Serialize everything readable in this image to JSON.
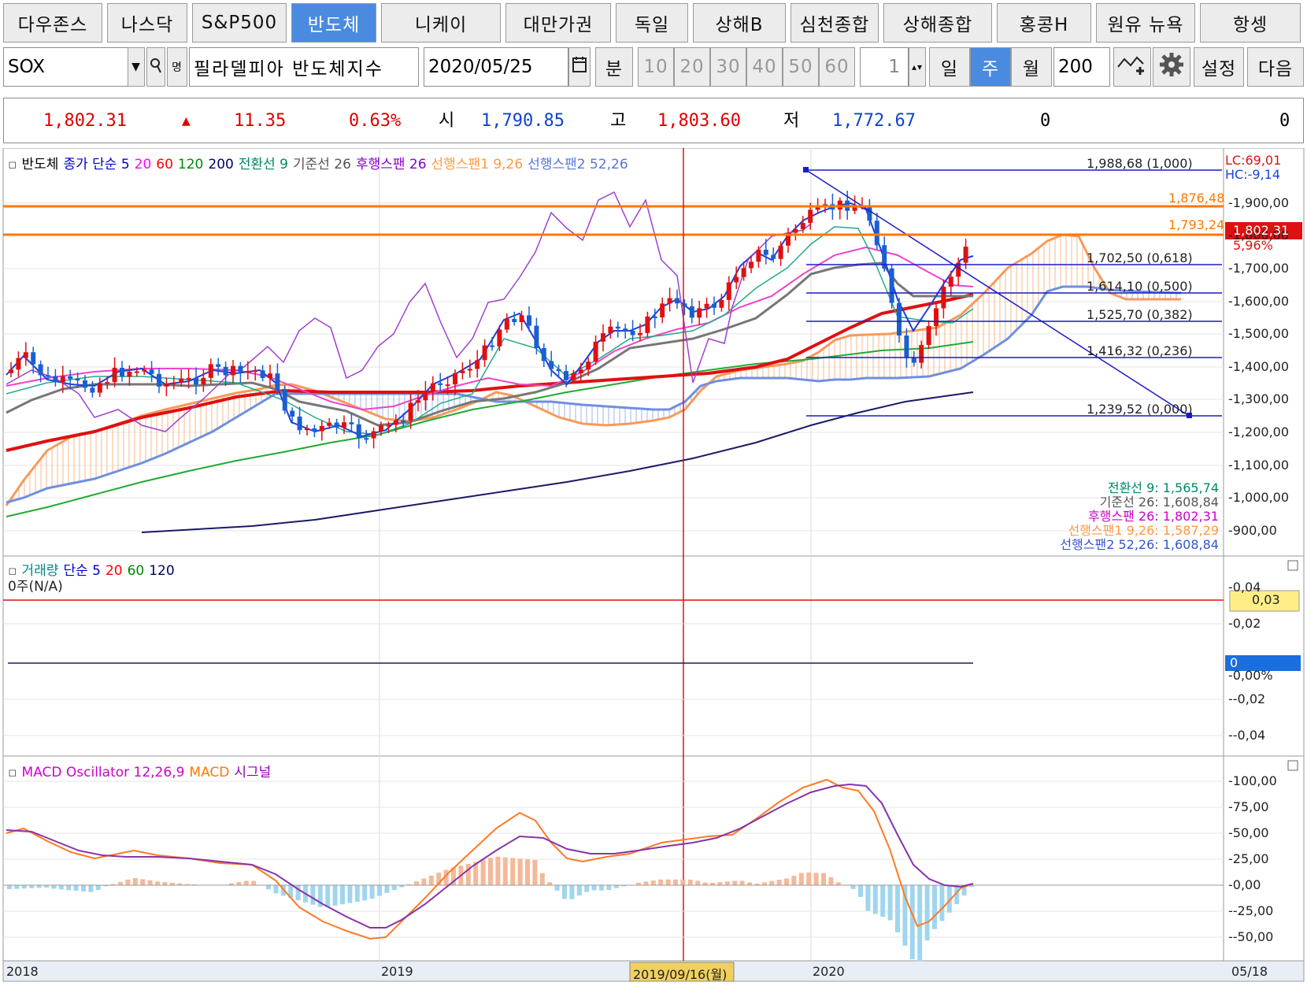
{
  "market_tabs": [
    "다우존스",
    "나스닥",
    "S&P500",
    "반도체",
    "니케이",
    "대만가권",
    "독일",
    "상해B",
    "심천종합",
    "상해종합",
    "홍콩H",
    "원유 뉴욕",
    "항셍"
  ],
  "active_tab": 3,
  "toolbar": {
    "symbol": "SOX",
    "dropdown_glyph": "▼",
    "search_glyph": "🔍",
    "name_glyph": "명",
    "name": "필라델피아 반도체지수",
    "date": "2020/05/25",
    "min_label": "분",
    "intervals": [
      "10",
      "20",
      "30",
      "40",
      "50",
      "60"
    ],
    "count": "1",
    "day_label": "일",
    "week_label": "주",
    "month_label": "월",
    "period": "200",
    "settings_label": "설정",
    "next_label": "다음"
  },
  "quote": {
    "price": "1,802.31",
    "arrow": "▲",
    "change": "11.35",
    "pct": "0.63%",
    "open_label": "시",
    "open": "1,790.85",
    "high_label": "고",
    "high": "1,803.60",
    "low_label": "저",
    "low": "1,772.67",
    "vol": "0",
    "amt": "0"
  },
  "price_panel": {
    "legend": [
      {
        "text": "반도체",
        "color": "#000000"
      },
      {
        "text": "종가 단순 5",
        "color": "#0000cc"
      },
      {
        "text": "20",
        "color": "#ff00ff"
      },
      {
        "text": "60",
        "color": "#ff0000"
      },
      {
        "text": "120",
        "color": "#008800"
      },
      {
        "text": "200",
        "color": "#000066"
      },
      {
        "text": "전환선 9",
        "color": "#008866"
      },
      {
        "text": "기준선 26",
        "color": "#555555"
      },
      {
        "text": "후행스팬 26",
        "color": "#8800cc"
      },
      {
        "text": "선행스팬1 9,26",
        "color": "#ff9944"
      },
      {
        "text": "선행스팬2 52,26",
        "color": "#5577dd"
      }
    ],
    "y_ticks": [
      "1,900,00",
      "1,800,00",
      "1,700,00",
      "1,600,00",
      "1,500,00",
      "1,400,00",
      "1,300,00",
      "1,200,00",
      "1,100,00",
      "1,000,00",
      "900,00"
    ],
    "fib_labels": [
      "1,988,68 (1,000)",
      "1,702,50 (0,618)",
      "1,614,10 (0,500)",
      "1,525,70 (0,382)",
      "1,416,32 (0,236)",
      "1,239,52 (0,000)"
    ],
    "hline_labels": [
      "1,876,48",
      "1,793,24"
    ],
    "lc": "LC:69,01",
    "hc": "HC:-9,14",
    "last_price": "1,802,31",
    "last_pct": "5,96%",
    "ichimoku_values": [
      {
        "text": "전환선 9: 1,565,74",
        "color": "#008866"
      },
      {
        "text": "기준선 26: 1,608,84",
        "color": "#555555"
      },
      {
        "text": "후행스팬 26: 1,802,31",
        "color": "#cc00cc"
      },
      {
        "text": "선행스팬1 9,26: 1,587,29",
        "color": "#ff9944"
      },
      {
        "text": "선행스팬2 52,26: 1,608,84",
        "color": "#3355cc"
      }
    ]
  },
  "volume_panel": {
    "legend": [
      {
        "text": "거래량",
        "color": "#008888"
      },
      {
        "text": "단순 5",
        "color": "#0000cc"
      },
      {
        "text": "20",
        "color": "#ff0000"
      },
      {
        "text": "60",
        "color": "#008800"
      },
      {
        "text": "120",
        "color": "#000066"
      }
    ],
    "sub_label": "0주(N/A)",
    "y_ticks": [
      "0,04",
      "0,02",
      "0,00%",
      "-0,02",
      "-0,04"
    ],
    "marker_top": "0,03",
    "marker_zero": "0"
  },
  "macd_panel": {
    "legend": [
      {
        "text": "MACD Oscillator 12,26,9",
        "color": "#cc00cc"
      },
      {
        "text": "MACD",
        "color": "#ff7700"
      },
      {
        "text": "시그널",
        "color": "#8800aa"
      }
    ],
    "y_ticks": [
      "100,00",
      "75,00",
      "50,00",
      "25,00",
      "0,00",
      "-25,00",
      "-50,00"
    ]
  },
  "x_axis": {
    "labels": [
      "2018",
      "2019",
      "2020"
    ],
    "crosshair_date": "2019/09/16(월)",
    "right_label": "05/18"
  }
}
